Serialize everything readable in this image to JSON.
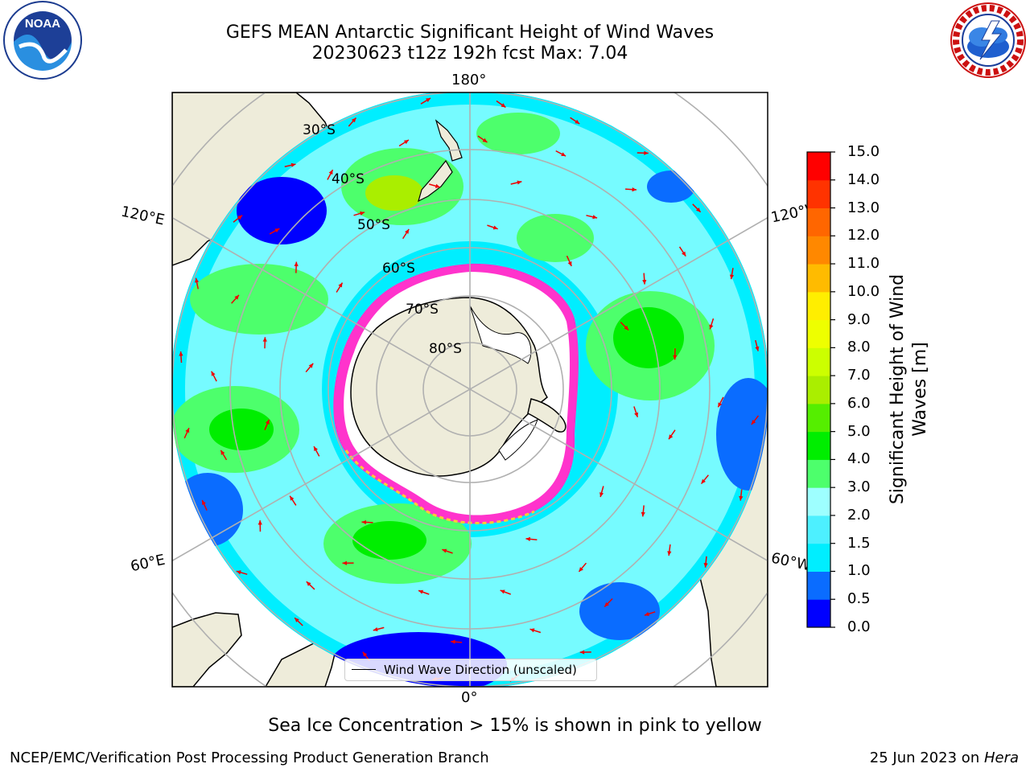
{
  "title": {
    "line1": "GEFS MEAN Antarctic Significant Height of Wind Waves",
    "line2": "20230623 t12z 192h fcst   Max: 7.04"
  },
  "logos": {
    "left": "noaa-logo",
    "right": "nws-logo"
  },
  "map": {
    "projection": "south-polar-stereographic",
    "longitude_labels": {
      "top": "180°",
      "bottom": "0°",
      "left_upper": "120°E",
      "left_lower": "60°E",
      "right_upper": "120°W",
      "right_lower": "60°W"
    },
    "latitude_labels": [
      "30°S",
      "40°S",
      "50°S",
      "60°S",
      "70°S",
      "80°S"
    ],
    "legend_label": "Wind Wave Direction (unscaled)",
    "colors": {
      "land": "#eeecda",
      "ice_interior": "#ffffff",
      "ice_edge": "#ff33cc",
      "arrows": "#ee0000",
      "gridlines": "#b0b0b0"
    }
  },
  "colorbar": {
    "label": "Significant Height of Wind Waves [m]",
    "ticks": [
      "0.0",
      "0.5",
      "1.0",
      "1.5",
      "2.0",
      "3.0",
      "4.0",
      "5.0",
      "6.0",
      "7.0",
      "8.0",
      "9.0",
      "10.0",
      "11.0",
      "12.0",
      "13.0",
      "14.0",
      "15.0"
    ],
    "colors": [
      "#0000ff",
      "#0a6cff",
      "#00eeff",
      "#4df0ff",
      "#9effff",
      "#4dff6c",
      "#00ee00",
      "#55ee00",
      "#aaee00",
      "#ccff00",
      "#eeff00",
      "#ffee00",
      "#ffbb00",
      "#ff8800",
      "#ff6600",
      "#ff3300",
      "#ff0000"
    ]
  },
  "footer": {
    "ice_note": "Sea Ice Concentration > 15% is shown in pink to yellow",
    "left": "NCEP/EMC/Verification Post Processing Product Generation Branch",
    "right_prefix": "25 Jun 2023 on ",
    "right_host": "Hera"
  }
}
